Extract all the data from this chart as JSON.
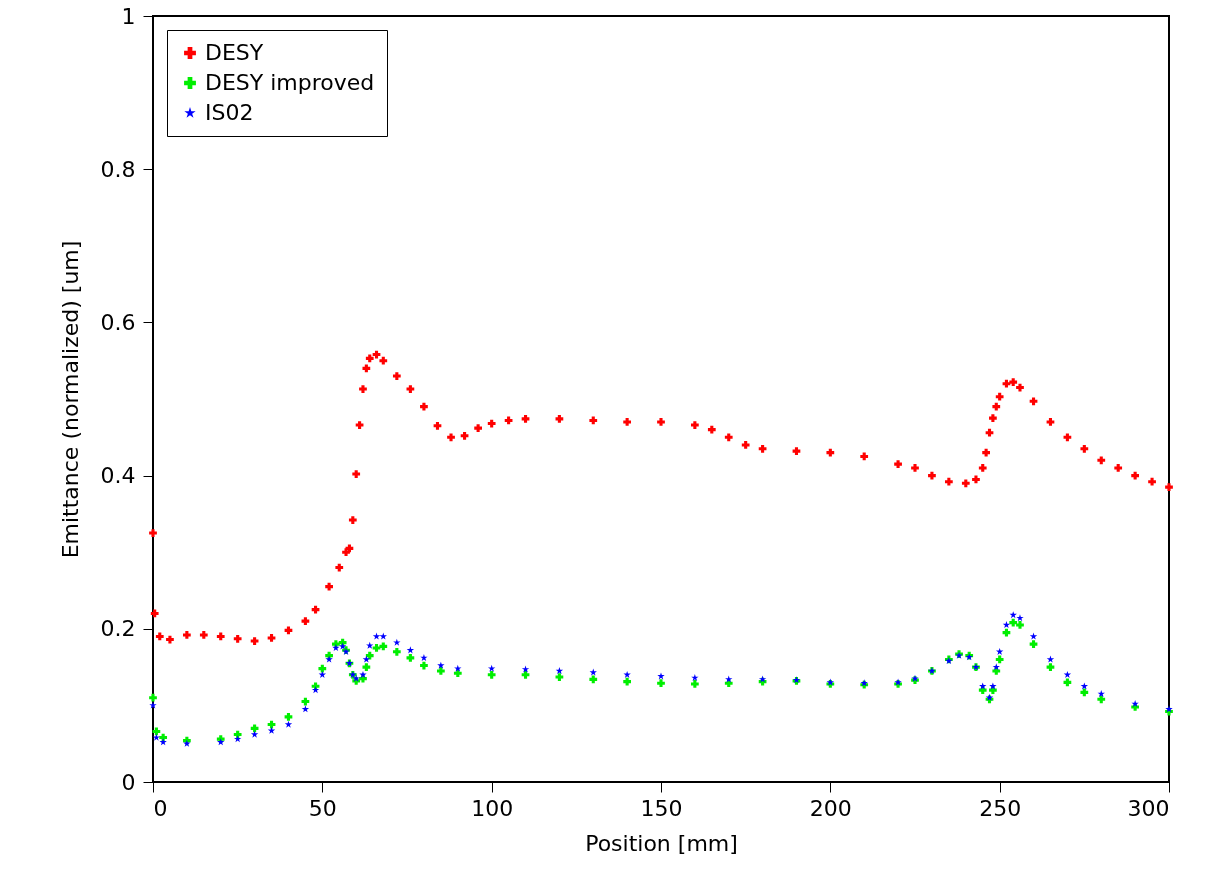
{
  "chart_data": {
    "type": "scatter",
    "xlabel": "Position [mm]",
    "ylabel": "Emittance (normalized) [um]",
    "xlim": [
      0,
      300
    ],
    "xticks": [
      0,
      50,
      100,
      150,
      200,
      250,
      300
    ],
    "ylim": [
      0,
      1
    ],
    "yticks": [
      0,
      0.2,
      0.4,
      0.6,
      0.8,
      1
    ],
    "grid": false,
    "legend": "top left",
    "series": [
      {
        "name": "DESY",
        "color": "#ff0000",
        "marker": "cross",
        "x": [
          0,
          0.5,
          2,
          5,
          10,
          15,
          20,
          25,
          30,
          35,
          40,
          45,
          48,
          52,
          55,
          57,
          58,
          59,
          60,
          61,
          62,
          63,
          64,
          66,
          68,
          72,
          76,
          80,
          84,
          88,
          92,
          96,
          100,
          105,
          110,
          120,
          130,
          140,
          150,
          160,
          165,
          170,
          175,
          180,
          190,
          200,
          210,
          220,
          225,
          230,
          235,
          240,
          243,
          245,
          246,
          247,
          248,
          249,
          250,
          252,
          254,
          256,
          260,
          265,
          270,
          275,
          280,
          285,
          290,
          295,
          300
        ],
        "values": [
          0.325,
          0.22,
          0.19,
          0.186,
          0.192,
          0.192,
          0.19,
          0.187,
          0.184,
          0.188,
          0.198,
          0.21,
          0.225,
          0.255,
          0.28,
          0.3,
          0.305,
          0.342,
          0.402,
          0.466,
          0.513,
          0.54,
          0.553,
          0.558,
          0.55,
          0.53,
          0.513,
          0.49,
          0.465,
          0.45,
          0.452,
          0.462,
          0.468,
          0.472,
          0.474,
          0.474,
          0.472,
          0.47,
          0.47,
          0.466,
          0.46,
          0.45,
          0.44,
          0.435,
          0.432,
          0.43,
          0.425,
          0.415,
          0.41,
          0.4,
          0.392,
          0.39,
          0.395,
          0.41,
          0.43,
          0.456,
          0.475,
          0.49,
          0.503,
          0.52,
          0.522,
          0.515,
          0.497,
          0.47,
          0.45,
          0.435,
          0.42,
          0.41,
          0.4,
          0.392,
          0.385
        ]
      },
      {
        "name": "DESY improved",
        "color": "#00ee00",
        "marker": "cross",
        "x": [
          0,
          1,
          3,
          10,
          20,
          25,
          30,
          35,
          40,
          45,
          48,
          50,
          52,
          54,
          56,
          57,
          58,
          59,
          60,
          62,
          63,
          64,
          66,
          68,
          72,
          76,
          80,
          85,
          90,
          100,
          110,
          120,
          130,
          140,
          150,
          160,
          170,
          180,
          190,
          200,
          210,
          220,
          225,
          230,
          235,
          238,
          241,
          243,
          245,
          247,
          248,
          249,
          250,
          252,
          254,
          256,
          260,
          265,
          270,
          275,
          280,
          290,
          300
        ],
        "values": [
          0.11,
          0.066,
          0.058,
          0.054,
          0.056,
          0.062,
          0.07,
          0.075,
          0.085,
          0.105,
          0.125,
          0.148,
          0.165,
          0.18,
          0.182,
          0.172,
          0.155,
          0.14,
          0.132,
          0.135,
          0.15,
          0.165,
          0.175,
          0.177,
          0.17,
          0.162,
          0.152,
          0.145,
          0.142,
          0.14,
          0.14,
          0.137,
          0.134,
          0.131,
          0.129,
          0.128,
          0.129,
          0.131,
          0.132,
          0.128,
          0.127,
          0.128,
          0.133,
          0.145,
          0.16,
          0.167,
          0.165,
          0.15,
          0.12,
          0.108,
          0.12,
          0.145,
          0.16,
          0.195,
          0.208,
          0.205,
          0.18,
          0.15,
          0.13,
          0.117,
          0.108,
          0.098,
          0.092
        ]
      },
      {
        "name": "IS02",
        "color": "#0000ff",
        "marker": "star",
        "x": [
          0,
          1,
          3,
          10,
          20,
          25,
          30,
          35,
          40,
          45,
          48,
          50,
          52,
          54,
          56,
          57,
          58,
          59,
          60,
          62,
          63,
          64,
          66,
          68,
          72,
          76,
          80,
          85,
          90,
          100,
          110,
          120,
          130,
          140,
          150,
          160,
          170,
          180,
          190,
          200,
          210,
          220,
          225,
          230,
          235,
          238,
          241,
          243,
          245,
          247,
          248,
          249,
          250,
          252,
          254,
          256,
          260,
          265,
          270,
          275,
          280,
          290,
          300
        ],
        "values": [
          0.1,
          0.058,
          0.052,
          0.05,
          0.052,
          0.056,
          0.062,
          0.067,
          0.075,
          0.095,
          0.12,
          0.14,
          0.16,
          0.175,
          0.177,
          0.17,
          0.155,
          0.14,
          0.135,
          0.14,
          0.16,
          0.178,
          0.19,
          0.19,
          0.182,
          0.172,
          0.162,
          0.152,
          0.148,
          0.148,
          0.147,
          0.145,
          0.143,
          0.14,
          0.138,
          0.136,
          0.134,
          0.134,
          0.133,
          0.13,
          0.129,
          0.13,
          0.135,
          0.145,
          0.158,
          0.165,
          0.163,
          0.15,
          0.125,
          0.11,
          0.125,
          0.15,
          0.17,
          0.205,
          0.218,
          0.214,
          0.19,
          0.16,
          0.14,
          0.125,
          0.115,
          0.102,
          0.095
        ]
      }
    ]
  }
}
